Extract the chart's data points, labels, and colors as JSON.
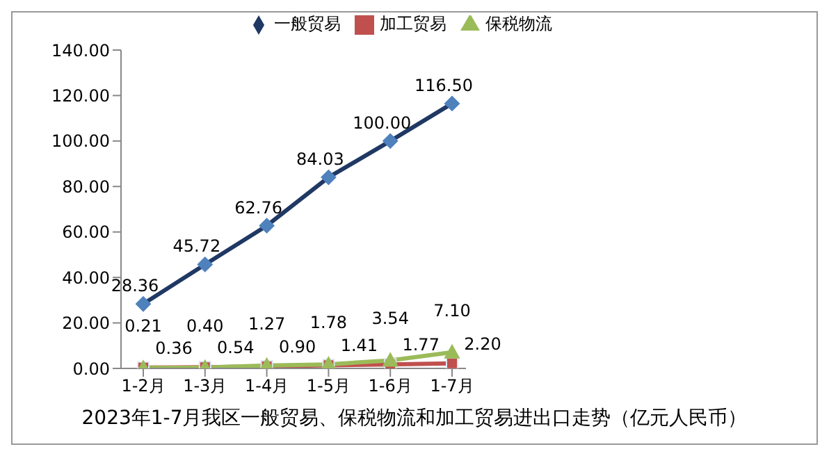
{
  "chart_data": {
    "type": "line",
    "title": "2023年1-7月我区一般贸易、保税物流和加工贸易进出口走势（亿元人民币）",
    "categories": [
      "1-2月",
      "1-3月",
      "1-4月",
      "1-5月",
      "1-6月",
      "1-7月"
    ],
    "series": [
      {
        "name": "一般贸易",
        "color": "#1f3864",
        "marker": "diamond",
        "values": [
          28.36,
          45.72,
          62.76,
          84.03,
          100.0,
          116.5
        ],
        "value_labels": [
          "28.36",
          "45.72",
          "62.76",
          "84.03",
          "100.00",
          "116.50"
        ]
      },
      {
        "name": "加工贸易",
        "color": "#c0504d",
        "marker": "square",
        "values": [
          0.36,
          0.54,
          0.9,
          1.41,
          1.77,
          2.2
        ],
        "value_labels": [
          "0.36",
          "0.54",
          "0.90",
          "1.41",
          "1.77",
          "2.20"
        ]
      },
      {
        "name": "保税物流",
        "color": "#9bbb59",
        "marker": "triangle",
        "values": [
          0.21,
          0.4,
          1.27,
          1.78,
          3.54,
          7.1
        ],
        "value_labels": [
          "0.21",
          "0.40",
          "1.27",
          "1.78",
          "3.54",
          "7.10"
        ]
      }
    ],
    "ylim": [
      0,
      140
    ],
    "yticks": [
      {
        "value": 0,
        "label": "0.00"
      },
      {
        "value": 20,
        "label": "20.00"
      },
      {
        "value": 40,
        "label": "40.00"
      },
      {
        "value": 60,
        "label": "60.00"
      },
      {
        "value": 80,
        "label": "80.00"
      },
      {
        "value": 100,
        "label": "100.00"
      },
      {
        "value": 120,
        "label": "120.00"
      },
      {
        "value": 140,
        "label": "140.00"
      }
    ],
    "grid": false,
    "legend": "top",
    "line_style": "solid"
  }
}
